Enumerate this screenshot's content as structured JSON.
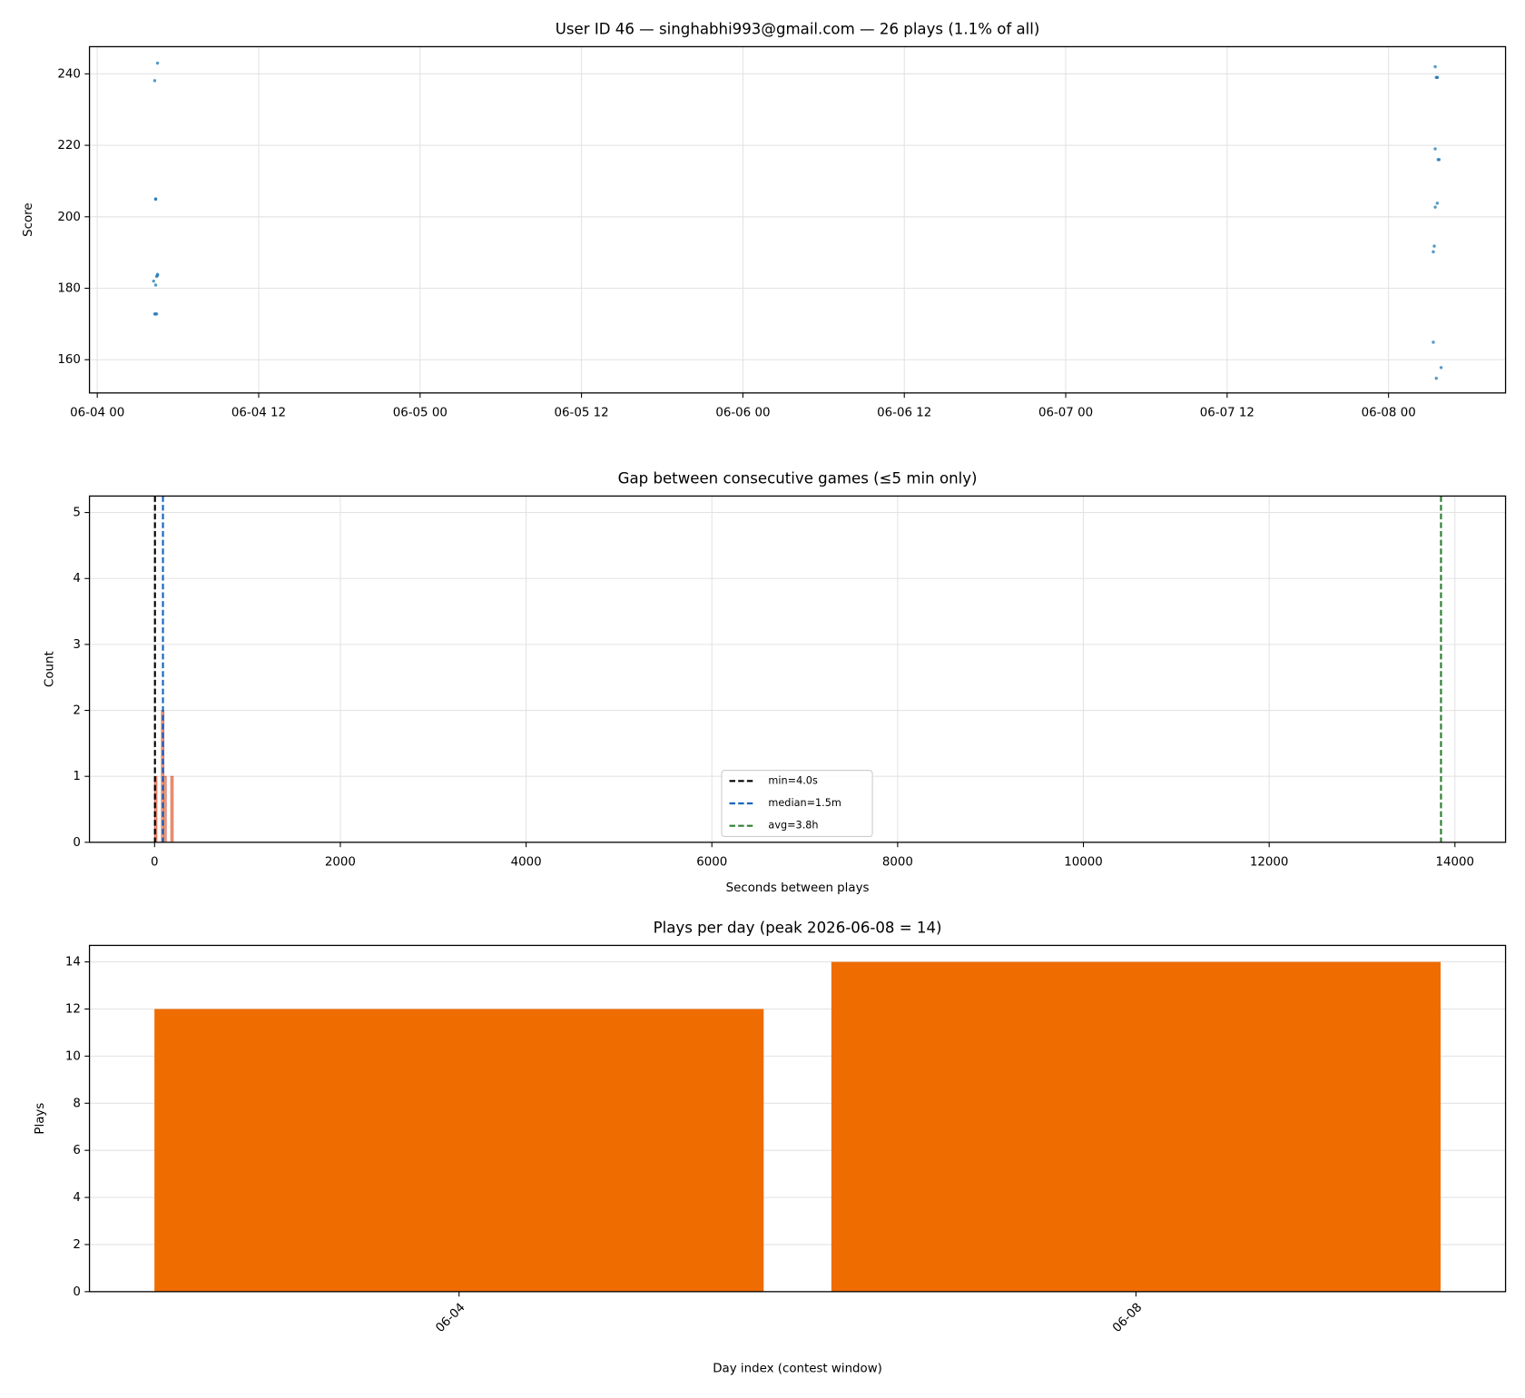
{
  "chart_data": [
    {
      "type": "scatter",
      "title": "User ID 46 — singhabhi993@gmail.com — 26 plays (1.1% of all)",
      "ylabel": "Score",
      "x": [
        4.48,
        4.27,
        4.34,
        4.48,
        4.41,
        4.19,
        4.34,
        4.27,
        4.41,
        4.48,
        4.34,
        4.34,
        99.47,
        99.62,
        99.55,
        99.62,
        99.47,
        99.69,
        99.76,
        99.62,
        99.47,
        99.4,
        99.33,
        99.33,
        99.91,
        99.55
      ],
      "values": [
        243,
        238.1,
        204.9,
        183.6,
        183.3,
        182,
        180.9,
        172.8,
        172.8,
        183.9,
        172.8,
        205,
        242,
        239,
        239,
        239,
        219,
        216,
        216,
        203.8,
        202.7,
        191.8,
        190.2,
        164.9,
        157.8,
        154.8
      ],
      "color": "#1f77b4",
      "xlim": [
        -0.58,
        104.7
      ],
      "ylim": [
        150.7,
        247.6
      ],
      "xticks": [
        {
          "value": 0,
          "label": "06-04 00"
        },
        {
          "value": 12,
          "label": "06-04 12"
        },
        {
          "value": 24,
          "label": "06-05 00"
        },
        {
          "value": 36,
          "label": "06-05 12"
        },
        {
          "value": 48,
          "label": "06-06 00"
        },
        {
          "value": 60,
          "label": "06-06 12"
        },
        {
          "value": 72,
          "label": "06-07 00"
        },
        {
          "value": 84,
          "label": "06-07 12"
        },
        {
          "value": 96,
          "label": "06-08 00"
        }
      ],
      "yticks": [
        160,
        180,
        200,
        220,
        240
      ],
      "grid": true
    },
    {
      "type": "histogram",
      "title": "Gap between consecutive games (≤5 min only)",
      "xlabel": "Seconds between plays",
      "ylabel": "Count",
      "bins": [
        0,
        25,
        50,
        75,
        100,
        125,
        150,
        175,
        200
      ],
      "values": [
        1,
        0,
        0,
        2,
        1,
        0,
        0,
        1
      ],
      "color": "#f4a582",
      "edgecolor": "#d6604d",
      "xlim": [
        -701,
        14545
      ],
      "ylim": [
        0,
        5.25
      ],
      "xticks": [
        0,
        2000,
        4000,
        6000,
        8000,
        10000,
        12000,
        14000
      ],
      "yticks": [
        0,
        1,
        2,
        3,
        4,
        5
      ],
      "grid": true,
      "lines": [
        {
          "name": "min=4.0s",
          "value": 4,
          "color": "#000000"
        },
        {
          "name": "median=1.5m",
          "value": 90,
          "color": "#1565c0"
        },
        {
          "name": "avg=3.8h",
          "value": 13850,
          "color": "#2e7d32"
        }
      ],
      "legend": "lower center"
    },
    {
      "type": "bar",
      "title": "Plays per day (peak 2026-06-08 = 14)",
      "xlabel": "Day index (contest window)",
      "ylabel": "Plays",
      "categories": [
        "06-04",
        "06-08"
      ],
      "values": [
        12,
        14
      ],
      "color": "#ef6c00",
      "ylim": [
        0,
        14.7
      ],
      "yticks": [
        0,
        2,
        4,
        6,
        8,
        10,
        12,
        14
      ],
      "grid": true
    }
  ]
}
